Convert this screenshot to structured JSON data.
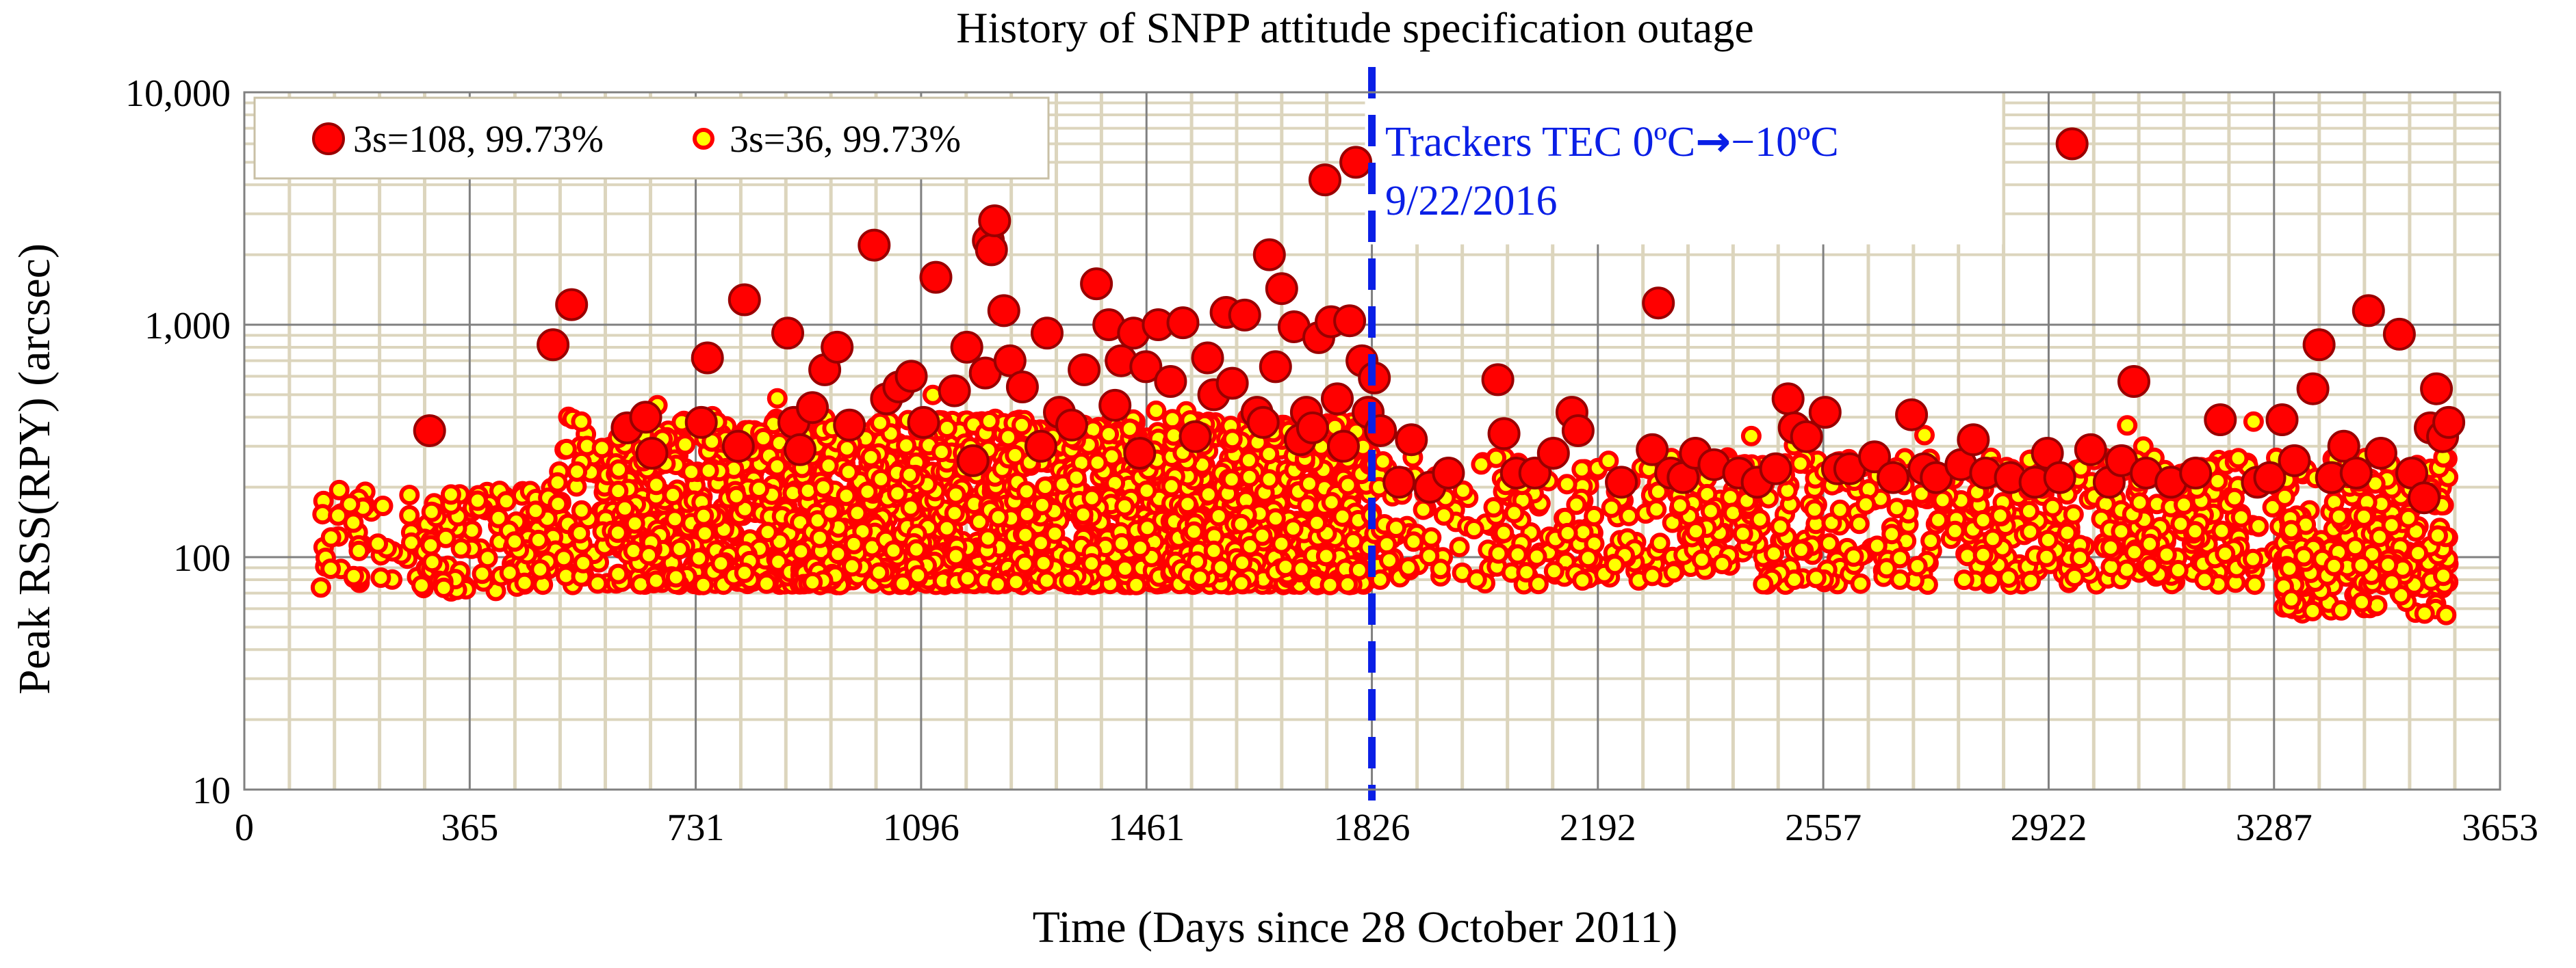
{
  "chart_data": {
    "type": "scatter",
    "title": "History of SNPP attitude specification outage",
    "xlabel": "Time (Days since 28 October 2011)",
    "ylabel": "Peak RSS(RPY) (arcsec)",
    "xlim": [
      0,
      3653
    ],
    "ylim": [
      10,
      10000
    ],
    "yscale": "log",
    "x_ticks": [
      0,
      365,
      731,
      1096,
      1461,
      1826,
      2192,
      2557,
      2922,
      3287,
      3653
    ],
    "x_tick_labels": [
      "0",
      "365",
      "731",
      "1096",
      "1461",
      "1826",
      "2192",
      "2557",
      "2922",
      "3287",
      "3653"
    ],
    "y_ticks": [
      10,
      100,
      1000,
      10000
    ],
    "y_tick_labels": [
      "10",
      "100",
      "1,000",
      "10,000"
    ],
    "legend_position": "top-left",
    "series": [
      {
        "name": "3s=108, 99.73%",
        "marker": "large circle",
        "fill": "#ff0000",
        "edge": "#990000",
        "points": [
          [
            300,
            350
          ],
          [
            500,
            820
          ],
          [
            530,
            1220
          ],
          [
            620,
            360
          ],
          [
            650,
            400
          ],
          [
            660,
            280
          ],
          [
            740,
            380
          ],
          [
            750,
            720
          ],
          [
            800,
            300
          ],
          [
            810,
            1280
          ],
          [
            880,
            920
          ],
          [
            890,
            380
          ],
          [
            900,
            290
          ],
          [
            920,
            440
          ],
          [
            940,
            640
          ],
          [
            960,
            800
          ],
          [
            980,
            370
          ],
          [
            1020,
            2200
          ],
          [
            1040,
            480
          ],
          [
            1060,
            540
          ],
          [
            1080,
            600
          ],
          [
            1100,
            380
          ],
          [
            1120,
            1600
          ],
          [
            1150,
            520
          ],
          [
            1170,
            800
          ],
          [
            1180,
            260
          ],
          [
            1200,
            620
          ],
          [
            1205,
            2300
          ],
          [
            1210,
            2100
          ],
          [
            1215,
            2800
          ],
          [
            1230,
            1150
          ],
          [
            1240,
            700
          ],
          [
            1260,
            540
          ],
          [
            1290,
            300
          ],
          [
            1300,
            920
          ],
          [
            1320,
            420
          ],
          [
            1340,
            370
          ],
          [
            1360,
            640
          ],
          [
            1380,
            1500
          ],
          [
            1400,
            1000
          ],
          [
            1410,
            450
          ],
          [
            1420,
            700
          ],
          [
            1440,
            920
          ],
          [
            1450,
            280
          ],
          [
            1460,
            660
          ],
          [
            1480,
            1000
          ],
          [
            1500,
            570
          ],
          [
            1520,
            1020
          ],
          [
            1540,
            330
          ],
          [
            1560,
            720
          ],
          [
            1570,
            500
          ],
          [
            1590,
            1130
          ],
          [
            1600,
            560
          ],
          [
            1620,
            1100
          ],
          [
            1640,
            420
          ],
          [
            1650,
            380
          ],
          [
            1660,
            2000
          ],
          [
            1670,
            660
          ],
          [
            1680,
            1430
          ],
          [
            1700,
            980
          ],
          [
            1710,
            320
          ],
          [
            1720,
            420
          ],
          [
            1730,
            360
          ],
          [
            1740,
            880
          ],
          [
            1750,
            4200
          ],
          [
            1760,
            1030
          ],
          [
            1770,
            480
          ],
          [
            1780,
            300
          ],
          [
            1790,
            1040
          ],
          [
            1800,
            5000
          ],
          [
            1810,
            700
          ],
          [
            1820,
            420
          ],
          [
            1830,
            590
          ],
          [
            1840,
            350
          ],
          [
            1870,
            210
          ],
          [
            1890,
            320
          ],
          [
            1920,
            200
          ],
          [
            1950,
            230
          ],
          [
            2030,
            580
          ],
          [
            2040,
            340
          ],
          [
            2060,
            230
          ],
          [
            2090,
            230
          ],
          [
            2120,
            280
          ],
          [
            2150,
            420
          ],
          [
            2160,
            350
          ],
          [
            2230,
            210
          ],
          [
            2280,
            290
          ],
          [
            2290,
            1240
          ],
          [
            2310,
            230
          ],
          [
            2330,
            220
          ],
          [
            2350,
            280
          ],
          [
            2380,
            250
          ],
          [
            2420,
            230
          ],
          [
            2450,
            210
          ],
          [
            2480,
            240
          ],
          [
            2500,
            480
          ],
          [
            2510,
            360
          ],
          [
            2530,
            330
          ],
          [
            2560,
            420
          ],
          [
            2580,
            240
          ],
          [
            2600,
            240
          ],
          [
            2640,
            270
          ],
          [
            2670,
            220
          ],
          [
            2700,
            410
          ],
          [
            2720,
            240
          ],
          [
            2740,
            220
          ],
          [
            2780,
            250
          ],
          [
            2800,
            320
          ],
          [
            2820,
            230
          ],
          [
            2860,
            220
          ],
          [
            2900,
            210
          ],
          [
            2920,
            280
          ],
          [
            2940,
            220
          ],
          [
            2960,
            6000
          ],
          [
            2990,
            290
          ],
          [
            3020,
            210
          ],
          [
            3040,
            260
          ],
          [
            3060,
            570
          ],
          [
            3080,
            230
          ],
          [
            3120,
            210
          ],
          [
            3160,
            230
          ],
          [
            3200,
            390
          ],
          [
            3260,
            210
          ],
          [
            3280,
            220
          ],
          [
            3300,
            390
          ],
          [
            3320,
            260
          ],
          [
            3350,
            530
          ],
          [
            3360,
            820
          ],
          [
            3380,
            220
          ],
          [
            3400,
            300
          ],
          [
            3420,
            230
          ],
          [
            3440,
            1150
          ],
          [
            3460,
            280
          ],
          [
            3490,
            910
          ],
          [
            3510,
            230
          ],
          [
            3530,
            180
          ],
          [
            3540,
            360
          ],
          [
            3550,
            530
          ],
          [
            3560,
            330
          ],
          [
            3570,
            380
          ]
        ]
      },
      {
        "name": "3s=36, 99.73%",
        "marker": "small circle",
        "fill": "#ffff00",
        "edge": "#ff0000",
        "note": "dense cloud of ~2600 points between days 120 and 3570, peak values 55-600 arcsec, densest between days 600 and 1826"
      }
    ],
    "annotations": [
      {
        "type": "vertical-dashed-line",
        "x": 1826,
        "color": "#0a1fe6"
      },
      {
        "text_line1": "Trackers TEC 0ºC",
        "arrow": "→",
        "text_line1b": "−10ºC",
        "text_line2": "9/22/2016",
        "color": "#0a1fe6"
      }
    ]
  }
}
